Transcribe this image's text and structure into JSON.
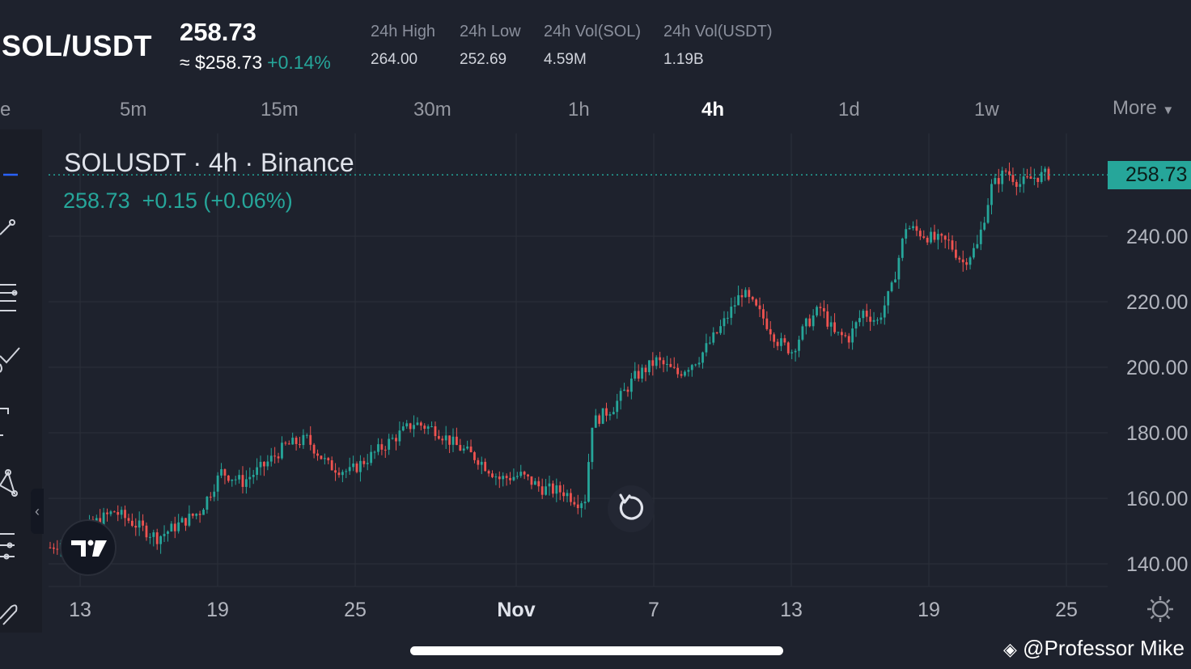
{
  "header": {
    "pair": "SOL/USDT",
    "price": "258.73",
    "approx_usd": "≈ $258.73",
    "change_pct": "+0.14%",
    "stats": [
      {
        "label": "24h High",
        "value": "264.00"
      },
      {
        "label": "24h Low",
        "value": "252.69"
      },
      {
        "label": "24h Vol(SOL)",
        "value": "4.59M"
      },
      {
        "label": "24h Vol(USDT)",
        "value": "1.19B"
      }
    ]
  },
  "timeframes": {
    "items": [
      "e",
      "5m",
      "15m",
      "30m",
      "1h",
      "4h",
      "1d",
      "1w"
    ],
    "active": "4h",
    "more_label": "More"
  },
  "legend": {
    "title": "SOLUSDT · 4h · Binance",
    "values": "258.73  +0.15 (+0.06%)"
  },
  "price_tag": "258.73",
  "watermark": "@Professor Mike",
  "colors": {
    "background": "#1e222d",
    "up": "#26a69a",
    "down": "#ef5350",
    "grid": "#2a2e39"
  },
  "icons": [
    "horizontal-line-icon",
    "trend-line-icon",
    "fib-icon",
    "brush-icon",
    "text-icon",
    "pattern-icon",
    "measure-icon",
    "eraser-icon",
    "tradingview-logo-icon",
    "reset-icon",
    "settings-icon"
  ],
  "chart_data": {
    "type": "candlestick",
    "x_tick_labels": [
      "13",
      "19",
      "25",
      "Nov",
      "7",
      "13",
      "19",
      "25"
    ],
    "y_tick_labels": [
      "240.00",
      "220.00",
      "200.00",
      "180.00",
      "160.00",
      "140.00"
    ],
    "ylim": [
      134,
      264
    ],
    "current_price": 258.73,
    "grid": true,
    "close_path": [
      [
        0,
        145
      ],
      [
        10,
        151
      ],
      [
        18,
        156
      ],
      [
        24,
        152
      ],
      [
        30,
        148
      ],
      [
        36,
        152
      ],
      [
        42,
        156
      ],
      [
        48,
        168
      ],
      [
        54,
        165
      ],
      [
        60,
        170
      ],
      [
        66,
        176
      ],
      [
        72,
        178
      ],
      [
        78,
        170
      ],
      [
        84,
        168
      ],
      [
        90,
        173
      ],
      [
        96,
        178
      ],
      [
        102,
        183
      ],
      [
        108,
        181
      ],
      [
        114,
        176
      ],
      [
        120,
        172
      ],
      [
        126,
        166
      ],
      [
        132,
        167
      ],
      [
        138,
        163
      ],
      [
        144,
        162
      ],
      [
        148,
        159
      ],
      [
        150,
        160
      ],
      [
        152,
        183
      ],
      [
        158,
        188
      ],
      [
        164,
        197
      ],
      [
        170,
        202
      ],
      [
        176,
        198
      ],
      [
        182,
        203
      ],
      [
        188,
        212
      ],
      [
        194,
        223
      ],
      [
        200,
        215
      ],
      [
        204,
        208
      ],
      [
        208,
        205
      ],
      [
        212,
        213
      ],
      [
        216,
        218
      ],
      [
        220,
        210
      ],
      [
        224,
        209
      ],
      [
        228,
        217
      ],
      [
        232,
        214
      ],
      [
        236,
        224
      ],
      [
        240,
        243
      ],
      [
        244,
        241
      ],
      [
        248,
        239
      ],
      [
        252,
        238
      ],
      [
        256,
        232
      ],
      [
        260,
        237
      ],
      [
        264,
        255
      ],
      [
        268,
        260
      ],
      [
        272,
        256
      ],
      [
        276,
        258
      ],
      [
        280,
        259
      ]
    ]
  }
}
